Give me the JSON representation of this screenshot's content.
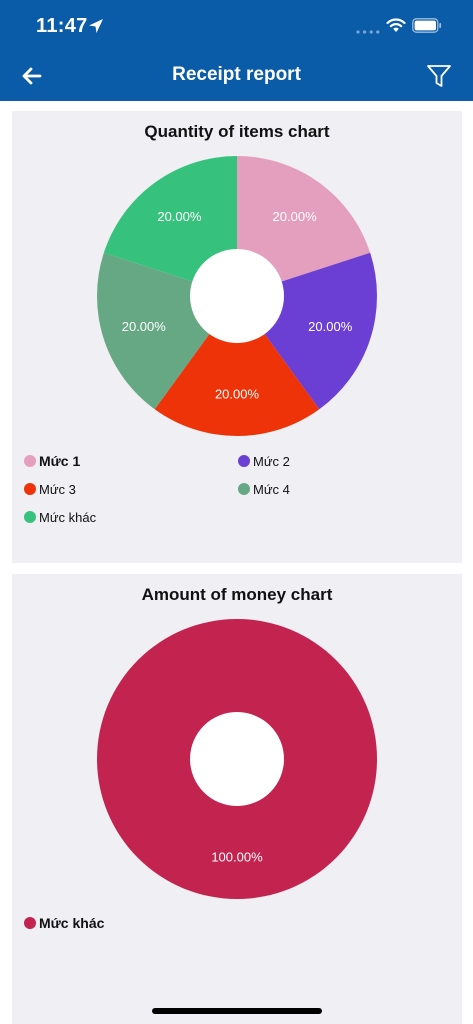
{
  "status_bar": {
    "time": "11:47"
  },
  "header": {
    "title": "Receipt report",
    "back_icon": "arrow-left-icon",
    "filter_icon": "funnel-icon"
  },
  "chart_data": [
    {
      "type": "pie",
      "title": "Quantity of items chart",
      "donut": true,
      "categories": [
        "Mức 1",
        "Mức 2",
        "Mức 3",
        "Mức 4",
        "Mức khác"
      ],
      "values": [
        20,
        20,
        20,
        20,
        20
      ],
      "labels": [
        "20.00%",
        "20.00%",
        "20.00%",
        "20.00%",
        "20.00%"
      ],
      "colors": [
        "#e49fbe",
        "#6b3fd3",
        "#ee3308",
        "#67a884",
        "#36c27c"
      ],
      "legend": [
        "Mức 1",
        "Mức 2",
        "Mức 3",
        "Mức 4",
        "Mức khác"
      ],
      "selected_legend": "Mức 1"
    },
    {
      "type": "pie",
      "title": "Amount of money chart",
      "donut": true,
      "categories": [
        "Mức khác"
      ],
      "values": [
        100
      ],
      "labels": [
        "100.00%"
      ],
      "colors": [
        "#c2234f"
      ],
      "legend": [
        "Mức khác"
      ],
      "selected_legend": "Mức khác"
    }
  ]
}
